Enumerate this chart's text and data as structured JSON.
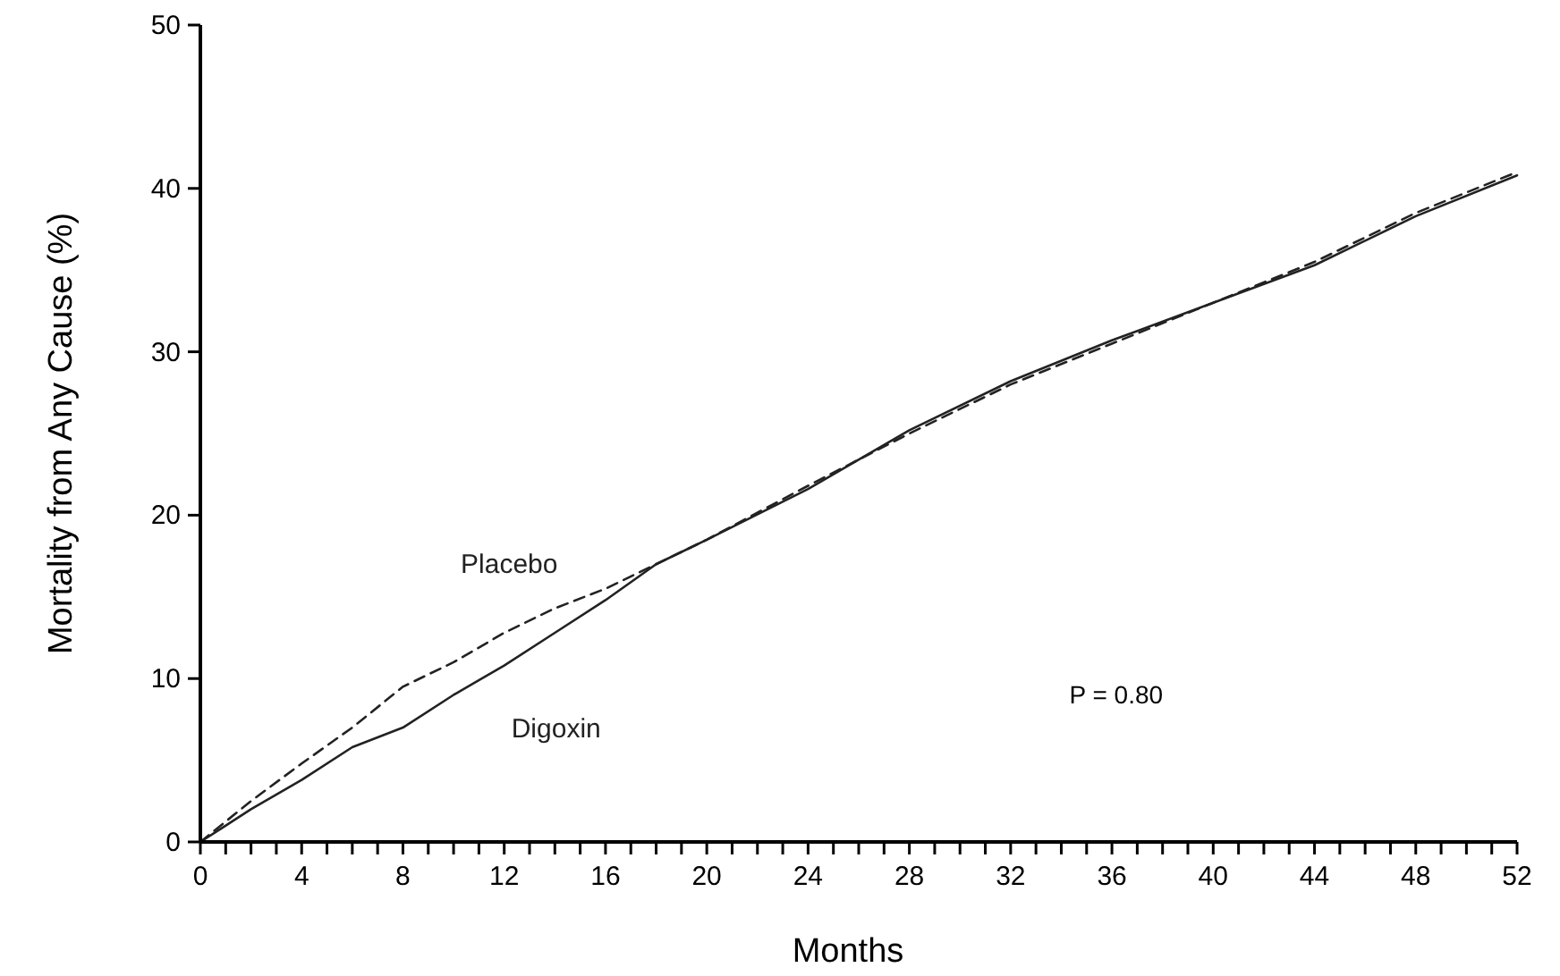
{
  "chart_data": {
    "type": "line",
    "xlabel": "Months",
    "ylabel": "Mortality from Any Cause (%)",
    "xlim": [
      0,
      52
    ],
    "ylim": [
      0,
      50
    ],
    "xticks": [
      0,
      {
        "value": 1,
        "label": null
      },
      {
        "value": 2,
        "label": null
      },
      {
        "value": 3,
        "label": null
      },
      4,
      {
        "value": 5,
        "label": null
      },
      {
        "value": 6,
        "label": null
      },
      {
        "value": 7,
        "label": null
      },
      8,
      {
        "value": 9,
        "label": null
      },
      {
        "value": 10,
        "label": null
      },
      {
        "value": 11,
        "label": null
      },
      12,
      {
        "value": 13,
        "label": null
      },
      {
        "value": 14,
        "label": null
      },
      {
        "value": 15,
        "label": null
      },
      16,
      {
        "value": 17,
        "label": null
      },
      {
        "value": 18,
        "label": null
      },
      {
        "value": 19,
        "label": null
      },
      20,
      {
        "value": 21,
        "label": null
      },
      {
        "value": 22,
        "label": null
      },
      {
        "value": 23,
        "label": null
      },
      24,
      {
        "value": 25,
        "label": null
      },
      {
        "value": 26,
        "label": null
      },
      {
        "value": 27,
        "label": null
      },
      28,
      {
        "value": 29,
        "label": null
      },
      {
        "value": 30,
        "label": null
      },
      {
        "value": 31,
        "label": null
      },
      32,
      {
        "value": 33,
        "label": null
      },
      {
        "value": 34,
        "label": null
      },
      {
        "value": 35,
        "label": null
      },
      36,
      {
        "value": 37,
        "label": null
      },
      {
        "value": 38,
        "label": null
      },
      {
        "value": 39,
        "label": null
      },
      40,
      {
        "value": 41,
        "label": null
      },
      {
        "value": 42,
        "label": null
      },
      {
        "value": 43,
        "label": null
      },
      44,
      {
        "value": 45,
        "label": null
      },
      {
        "value": 46,
        "label": null
      },
      {
        "value": 47,
        "label": null
      },
      48,
      {
        "value": 49,
        "label": null
      },
      {
        "value": 50,
        "label": null
      },
      {
        "value": 51,
        "label": null
      },
      52
    ],
    "yticks": [
      0,
      10,
      20,
      30,
      40,
      50
    ],
    "x": [
      0,
      2,
      4,
      6,
      8,
      10,
      12,
      14,
      16,
      18,
      20,
      24,
      28,
      32,
      36,
      40,
      44,
      48,
      52
    ],
    "series": [
      {
        "name": "Placebo",
        "color": "#222222",
        "line_style": "dashed",
        "values": [
          0,
          2.5,
          4.8,
          7,
          9.5,
          11,
          12.8,
          14.3,
          15.5,
          17,
          18.5,
          21.8,
          25,
          28,
          30.5,
          33,
          35.5,
          38.5,
          41
        ]
      },
      {
        "name": "Digoxin",
        "color": "#222222",
        "line_style": "solid",
        "values": [
          0,
          2,
          3.8,
          5.8,
          7,
          9,
          10.8,
          12.8,
          14.8,
          17,
          18.5,
          21.6,
          25.2,
          28.2,
          30.7,
          33,
          35.3,
          38.3,
          40.8
        ]
      }
    ],
    "annotations": [
      "P = 0.80"
    ],
    "grid": false,
    "marker": "none"
  }
}
